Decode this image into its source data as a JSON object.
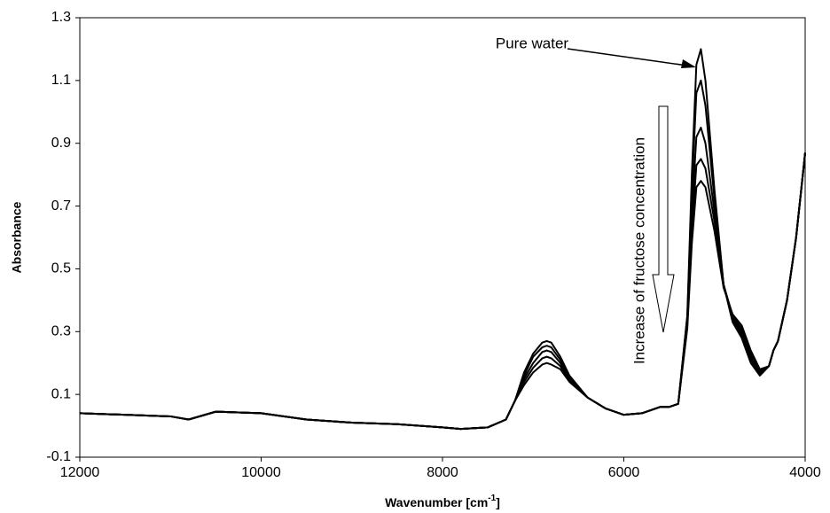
{
  "chart_data": {
    "type": "line",
    "y_label": "Absorbance",
    "x_label": {
      "text": "Wavenumber [cm",
      "sup": "-1",
      "end": "]"
    },
    "annotations": [
      {
        "text": "Pure water"
      },
      {
        "text": "Increase of  fructose concentration"
      }
    ],
    "xlim": [
      12000,
      4000
    ],
    "xticks": [
      12000,
      10000,
      8000,
      6000,
      4000
    ],
    "ylim": [
      -0.1,
      1.3
    ],
    "yticks": [
      -0.1,
      0.1,
      0.3,
      0.5,
      0.7,
      0.9,
      1.1,
      1.3
    ],
    "x": [
      12000,
      11500,
      11000,
      10800,
      10500,
      10000,
      9500,
      9000,
      8500,
      8000,
      7800,
      7500,
      7300,
      7200,
      7100,
      7000,
      6900,
      6850,
      6800,
      6700,
      6600,
      6400,
      6200,
      6000,
      5800,
      5600,
      5500,
      5400,
      5300,
      5250,
      5200,
      5150,
      5100,
      5000,
      4900,
      4800,
      4700,
      4600,
      4500,
      4400,
      4350,
      4300,
      4200,
      4100,
      4000
    ],
    "series": [
      {
        "color": "#000000",
        "values": [
          0.04,
          0.035,
          0.03,
          0.02,
          0.045,
          0.04,
          0.02,
          0.01,
          0.005,
          -0.005,
          -0.01,
          -0.005,
          0.02,
          0.08,
          0.17,
          0.23,
          0.265,
          0.27,
          0.265,
          0.22,
          0.16,
          0.09,
          0.055,
          0.035,
          0.04,
          0.06,
          0.06,
          0.07,
          0.35,
          0.8,
          1.15,
          1.2,
          1.1,
          0.75,
          0.45,
          0.33,
          0.28,
          0.2,
          0.16,
          0.19,
          0.24,
          0.27,
          0.4,
          0.6,
          0.87
        ]
      },
      {
        "color": "#000000",
        "values": [
          0.04,
          0.035,
          0.03,
          0.02,
          0.045,
          0.04,
          0.02,
          0.01,
          0.005,
          -0.005,
          -0.01,
          -0.005,
          0.02,
          0.08,
          0.16,
          0.22,
          0.25,
          0.255,
          0.25,
          0.21,
          0.155,
          0.09,
          0.055,
          0.035,
          0.04,
          0.06,
          0.06,
          0.07,
          0.35,
          0.75,
          1.06,
          1.1,
          1.02,
          0.72,
          0.45,
          0.34,
          0.29,
          0.21,
          0.165,
          0.19,
          0.24,
          0.27,
          0.4,
          0.6,
          0.87
        ]
      },
      {
        "color": "#000000",
        "values": [
          0.04,
          0.035,
          0.03,
          0.02,
          0.045,
          0.04,
          0.02,
          0.01,
          0.005,
          -0.005,
          -0.01,
          -0.005,
          0.02,
          0.08,
          0.15,
          0.2,
          0.235,
          0.24,
          0.235,
          0.2,
          0.15,
          0.09,
          0.055,
          0.035,
          0.04,
          0.06,
          0.06,
          0.07,
          0.33,
          0.68,
          0.92,
          0.95,
          0.9,
          0.68,
          0.45,
          0.345,
          0.3,
          0.22,
          0.17,
          0.19,
          0.24,
          0.27,
          0.4,
          0.6,
          0.87
        ]
      },
      {
        "color": "#000000",
        "values": [
          0.04,
          0.035,
          0.03,
          0.02,
          0.045,
          0.04,
          0.02,
          0.01,
          0.005,
          -0.005,
          -0.01,
          -0.005,
          0.02,
          0.08,
          0.14,
          0.185,
          0.215,
          0.22,
          0.215,
          0.19,
          0.145,
          0.09,
          0.055,
          0.035,
          0.04,
          0.06,
          0.06,
          0.07,
          0.32,
          0.62,
          0.83,
          0.85,
          0.82,
          0.65,
          0.45,
          0.35,
          0.31,
          0.23,
          0.175,
          0.19,
          0.24,
          0.27,
          0.4,
          0.6,
          0.87
        ]
      },
      {
        "color": "#000000",
        "values": [
          0.04,
          0.035,
          0.03,
          0.02,
          0.045,
          0.04,
          0.02,
          0.01,
          0.005,
          -0.005,
          -0.01,
          -0.005,
          0.02,
          0.08,
          0.13,
          0.17,
          0.195,
          0.2,
          0.195,
          0.18,
          0.14,
          0.09,
          0.055,
          0.035,
          0.04,
          0.06,
          0.06,
          0.07,
          0.31,
          0.58,
          0.76,
          0.78,
          0.76,
          0.62,
          0.44,
          0.355,
          0.32,
          0.24,
          0.18,
          0.19,
          0.24,
          0.27,
          0.4,
          0.6,
          0.87
        ]
      }
    ]
  }
}
